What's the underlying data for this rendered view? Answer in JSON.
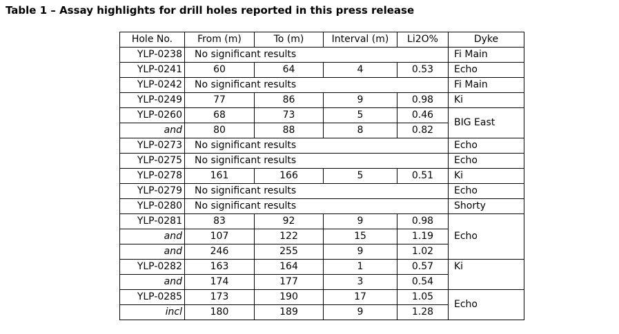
{
  "title": "Table 1 – Assay highlights for drill holes reported in this press release",
  "colors": {
    "text": "#000000",
    "border": "#000000",
    "background": "#ffffff"
  },
  "table": {
    "headers": [
      "Hole No.",
      "From (m)",
      "To (m)",
      "Interval (m)",
      "Li2O%",
      "Dyke"
    ],
    "no_results_text": "No significant results",
    "rows": [
      {
        "hole": "YLP-0238",
        "no_results": true,
        "dyke": "Fi Main",
        "dyke_rowspan": 1
      },
      {
        "hole": "YLP-0241",
        "from": "60",
        "to": "64",
        "interval": "4",
        "li2o": "0.53",
        "dyke": "Echo",
        "dyke_rowspan": 1
      },
      {
        "hole": "YLP-0242",
        "no_results": true,
        "dyke": "Fi Main",
        "dyke_rowspan": 1
      },
      {
        "hole": "YLP-0249",
        "from": "77",
        "to": "86",
        "interval": "9",
        "li2o": "0.98",
        "dyke": "Ki",
        "dyke_rowspan": 1
      },
      {
        "hole": "YLP-0260",
        "from": "68",
        "to": "73",
        "interval": "5",
        "li2o": "0.46",
        "dyke": "BIG East",
        "dyke_rowspan": 2
      },
      {
        "hole": "and",
        "italic": true,
        "from": "80",
        "to": "88",
        "interval": "8",
        "li2o": "0.82"
      },
      {
        "hole": "YLP-0273",
        "no_results": true,
        "dyke": "Echo",
        "dyke_rowspan": 1
      },
      {
        "hole": "YLP-0275",
        "no_results": true,
        "dyke": "Echo",
        "dyke_rowspan": 1
      },
      {
        "hole": "YLP-0278",
        "from": "161",
        "to": "166",
        "interval": "5",
        "li2o": "0.51",
        "dyke": "Ki",
        "dyke_rowspan": 1
      },
      {
        "hole": "YLP-0279",
        "no_results": true,
        "dyke": "Echo",
        "dyke_rowspan": 1
      },
      {
        "hole": "YLP-0280",
        "no_results": true,
        "dyke": "Shorty",
        "dyke_rowspan": 1
      },
      {
        "hole": "YLP-0281",
        "from": "83",
        "to": "92",
        "interval": "9",
        "li2o": "0.98",
        "dyke": "Echo",
        "dyke_rowspan": 3
      },
      {
        "hole": "and",
        "italic": true,
        "from": "107",
        "to": "122",
        "interval": "15",
        "li2o": "1.19"
      },
      {
        "hole": "and",
        "italic": true,
        "from": "246",
        "to": "255",
        "interval": "9",
        "li2o": "1.02"
      },
      {
        "hole": "YLP-0282",
        "from": "163",
        "to": "164",
        "interval": "1",
        "li2o": "0.57",
        "dyke": "Ki",
        "dyke_rowspan": 2,
        "dyke_valign": "top"
      },
      {
        "hole": "and",
        "italic": true,
        "from": "174",
        "to": "177",
        "interval": "3",
        "li2o": "0.54"
      },
      {
        "hole": "YLP-0285",
        "from": "173",
        "to": "190",
        "interval": "17",
        "li2o": "1.05",
        "dyke": "Echo",
        "dyke_rowspan": 2
      },
      {
        "hole": "incl",
        "italic": true,
        "from": "180",
        "to": "189",
        "interval": "9",
        "li2o": "1.28"
      }
    ]
  }
}
